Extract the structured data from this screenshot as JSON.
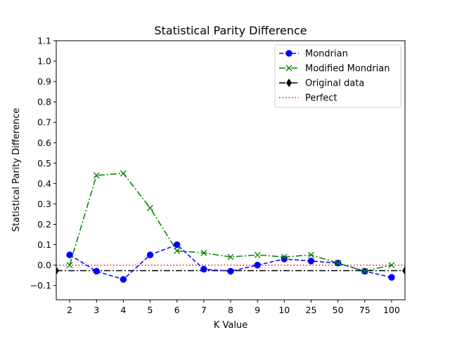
{
  "chart_data": {
    "type": "line",
    "title": "Statistical Parity Difference",
    "xlabel": "K Value",
    "ylabel": "Statistical Parity Difference",
    "categories": [
      "2",
      "3",
      "4",
      "5",
      "6",
      "7",
      "8",
      "9",
      "10",
      "25",
      "50",
      "75",
      "100"
    ],
    "ylim": [
      -0.17,
      1.1
    ],
    "yticks": [
      "−0.1",
      "0.0",
      "0.1",
      "0.2",
      "0.3",
      "0.4",
      "0.5",
      "0.6",
      "0.7",
      "0.8",
      "0.9",
      "1.0",
      "1.1"
    ],
    "ytick_values": [
      -0.1,
      0.0,
      0.1,
      0.2,
      0.3,
      0.4,
      0.5,
      0.6,
      0.7,
      0.8,
      0.9,
      1.0,
      1.1
    ],
    "grid": false,
    "legend_position": "top-right",
    "series": [
      {
        "name": "Mondrian",
        "color": "#0000ff",
        "linestyle": "dashed",
        "marker": "circle",
        "values": [
          0.05,
          -0.03,
          -0.07,
          0.05,
          0.1,
          -0.02,
          -0.03,
          0.0,
          0.03,
          0.02,
          0.01,
          -0.03,
          -0.06
        ]
      },
      {
        "name": "Modified Mondrian",
        "color": "#008000",
        "linestyle": "dashdot",
        "marker": "x",
        "values": [
          0.0,
          0.44,
          0.45,
          0.28,
          0.07,
          0.06,
          0.04,
          0.05,
          0.04,
          0.05,
          0.01,
          -0.03,
          0.0
        ]
      },
      {
        "name": "Original data",
        "color": "#000000",
        "linestyle": "dashdot",
        "marker": "diamond",
        "constant": -0.027
      },
      {
        "name": "Perfect",
        "color": "#ff0000",
        "linestyle": "dotted",
        "marker": "none",
        "constant": 0.0
      }
    ]
  }
}
